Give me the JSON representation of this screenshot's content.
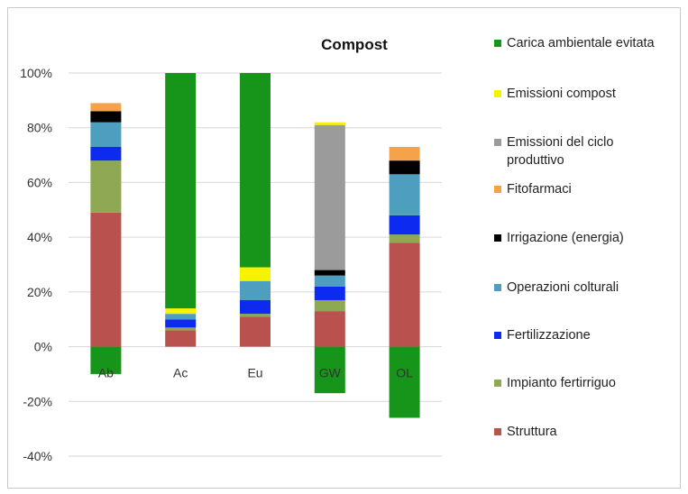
{
  "chart_data": {
    "type": "bar",
    "stacked": true,
    "title": "Compost",
    "xlabel": "",
    "ylabel": "",
    "categories": [
      "Ab",
      "Ac",
      "Eu",
      "GW",
      "OL"
    ],
    "y_ticks": [
      "100%",
      "80%",
      "60%",
      "40%",
      "20%",
      "0%",
      "-20%",
      "-40%"
    ],
    "ylim": [
      -40,
      100
    ],
    "grid": "horizontal",
    "legend_position": "right",
    "series": [
      {
        "name": "Struttura",
        "color": "#b9514e",
        "values": [
          49,
          6,
          11,
          13,
          38
        ]
      },
      {
        "name": "Impianto fertirriguo",
        "color": "#8ea853",
        "values": [
          19,
          1,
          1,
          4,
          3
        ]
      },
      {
        "name": "Fertilizzazione",
        "color": "#0c2af0",
        "values": [
          5,
          3,
          5,
          5,
          7
        ]
      },
      {
        "name": "Operazioni colturali",
        "color": "#4d9ebf",
        "values": [
          9,
          2,
          7,
          4,
          15
        ]
      },
      {
        "name": "Irrigazione (energia)",
        "color": "#000000",
        "values": [
          4,
          0,
          0,
          2,
          5
        ]
      },
      {
        "name": "Fitofarmaci",
        "color": "#f5a24a",
        "values": [
          3,
          0,
          0,
          0,
          5
        ]
      },
      {
        "name": "Emissioni del ciclo produttivo",
        "color": "#9b9b9b",
        "values": [
          0,
          0,
          0,
          53,
          0
        ]
      },
      {
        "name": "Emissioni compost",
        "color": "#f7f200",
        "values": [
          0,
          2,
          5,
          1,
          0
        ]
      },
      {
        "name": "Carica ambientale evitata",
        "color": "#17951b",
        "values": [
          -10,
          86,
          71,
          -17,
          -26
        ]
      }
    ]
  },
  "legend": [
    {
      "label": "Carica ambientale evitata",
      "color": "#17951b"
    },
    {
      "label": "Emissioni compost",
      "color": "#f7f200"
    },
    {
      "label": "Emissioni del ciclo produttivo",
      "color": "#9b9b9b"
    },
    {
      "label": "Fitofarmaci",
      "color": "#f5a24a"
    },
    {
      "label": "Irrigazione (energia)",
      "color": "#000000"
    },
    {
      "label": "Operazioni colturali",
      "color": "#4d9ebf"
    },
    {
      "label": "Fertilizzazione",
      "color": "#0c2af0"
    },
    {
      "label": "Impianto fertirriguo",
      "color": "#8ea853"
    },
    {
      "label": "Struttura",
      "color": "#b9514e"
    }
  ]
}
